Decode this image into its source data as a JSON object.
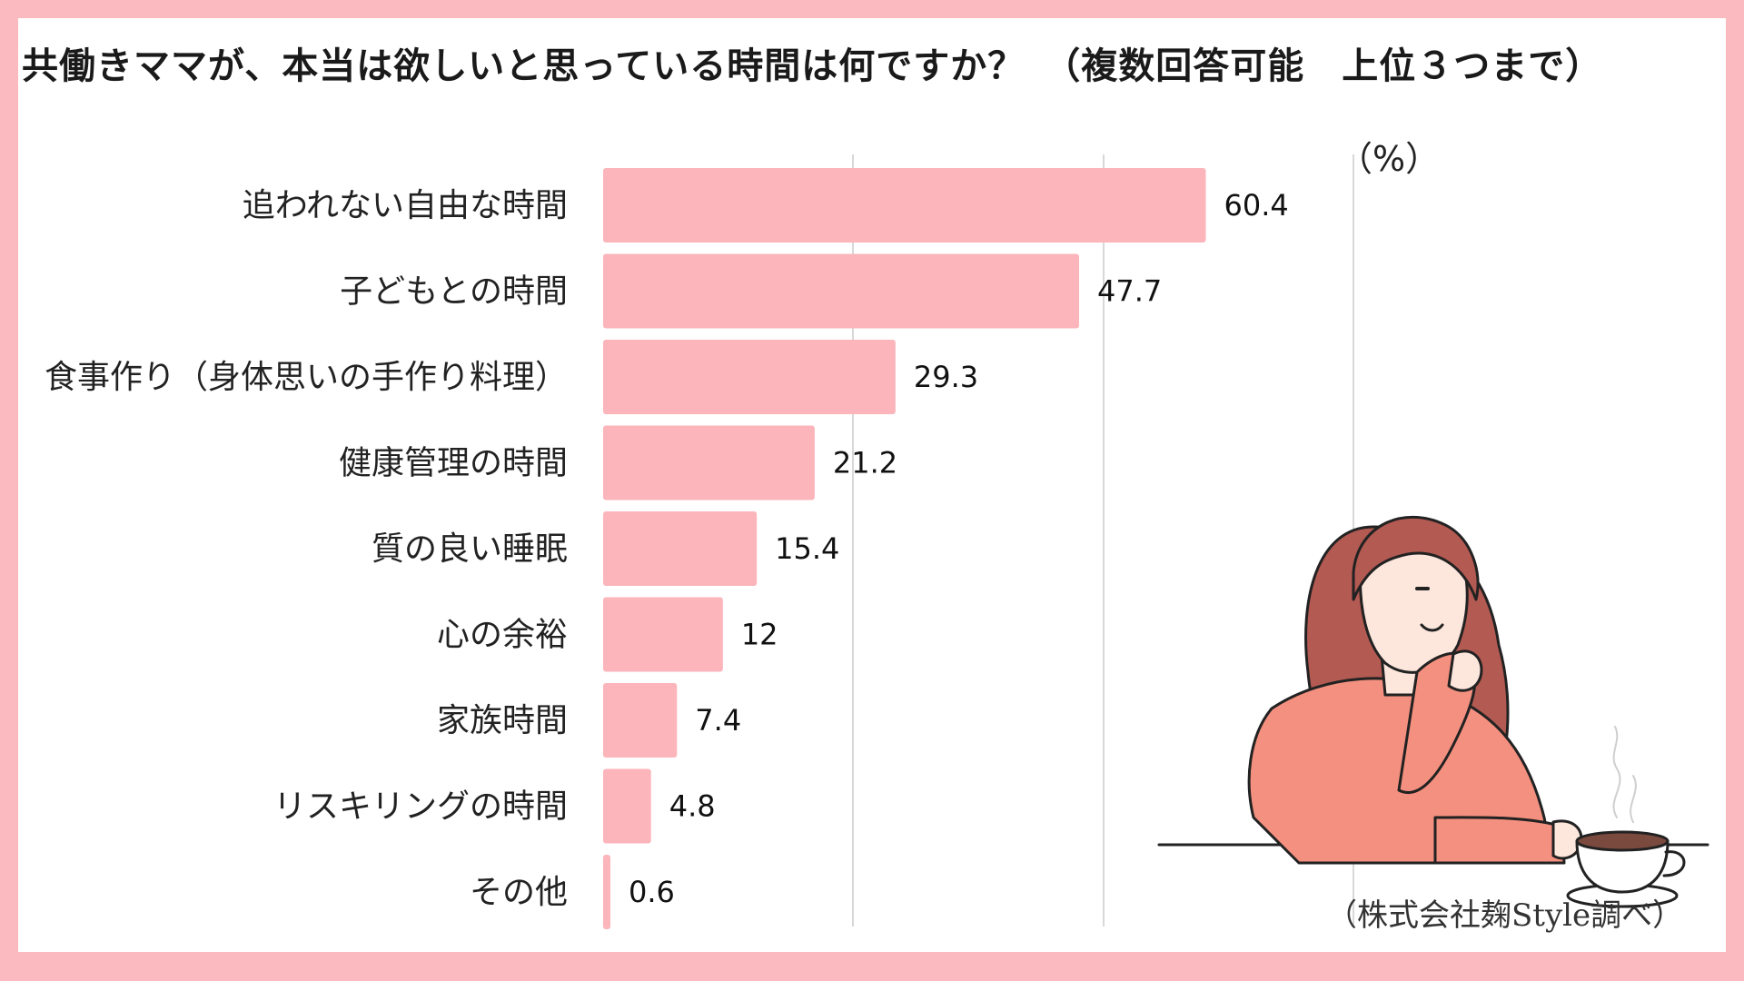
{
  "chart_data": {
    "type": "bar",
    "orientation": "horizontal",
    "title": "共働きママが、本当は欲しいと思っている時間は何ですか？　（複数回答可能　上位３つまで）",
    "unit": "（%）",
    "categories": [
      "追われない自由な時間",
      "子どもとの時間",
      "食事作り（身体思いの手作り料理）",
      "健康管理の時間",
      "質の良い睡眠",
      "心の余裕",
      "家族時間",
      "リスキリングの時間",
      "その他"
    ],
    "values": [
      60.4,
      47.7,
      29.3,
      21.2,
      15.4,
      12,
      7.4,
      4.8,
      0.6
    ],
    "value_labels": [
      "60.4",
      "47.7",
      "29.3",
      "21.2",
      "15.4",
      "12",
      "7.4",
      "4.8",
      "0.6"
    ],
    "grid": true,
    "bar_color": "#fbb5bb",
    "grid_color": "#d8d8d8"
  },
  "source": "（株式会社麹Style調べ）",
  "colors": {
    "frame": "#fbb9c0",
    "bar": "#fbb5bb",
    "woman_top": "#f4907f",
    "hair": "#b35a52"
  }
}
